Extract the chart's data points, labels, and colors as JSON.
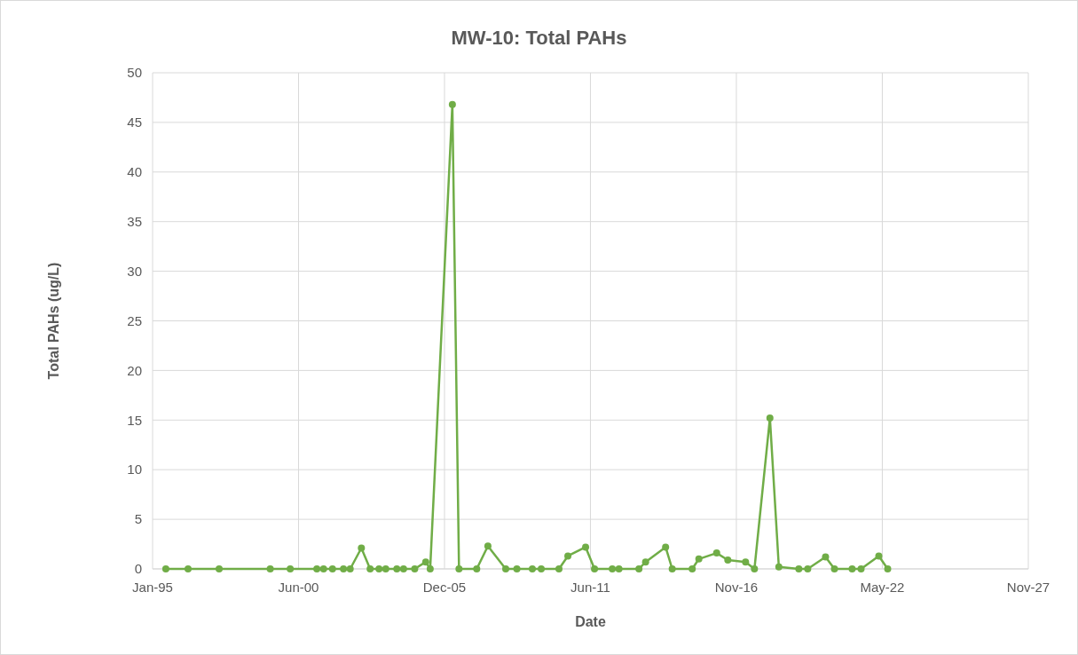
{
  "chart_data": {
    "type": "line",
    "title": "MW-10: Total PAHs",
    "xlabel": "Date",
    "ylabel": "Total PAHs (ug/L)",
    "x": [
      "1995-07",
      "1996-05",
      "1997-07",
      "1999-06",
      "2000-03",
      "2001-03",
      "2001-06",
      "2001-10",
      "2002-03",
      "2002-06",
      "2002-11",
      "2003-03",
      "2003-07",
      "2003-10",
      "2004-03",
      "2004-06",
      "2004-11",
      "2005-04",
      "2005-06",
      "2006-04",
      "2006-07",
      "2007-03",
      "2007-08",
      "2008-04",
      "2008-09",
      "2009-04",
      "2009-08",
      "2010-04",
      "2010-08",
      "2011-04",
      "2011-08",
      "2012-04",
      "2012-07",
      "2013-04",
      "2013-07",
      "2014-04",
      "2014-07",
      "2015-04",
      "2015-07",
      "2016-03",
      "2016-08",
      "2017-04",
      "2017-08",
      "2018-03",
      "2018-07",
      "2019-04",
      "2019-08",
      "2020-04",
      "2020-08",
      "2021-04",
      "2021-08",
      "2022-04",
      "2022-08"
    ],
    "series": [
      {
        "color": "#70ad47",
        "values": [
          0,
          0,
          0,
          0,
          0,
          0,
          0,
          0,
          0,
          0,
          2.1,
          0,
          0,
          0,
          0,
          0,
          0,
          0.7,
          0,
          46.8,
          0,
          0,
          2.3,
          0,
          0,
          0,
          0,
          0,
          1.3,
          2.2,
          0,
          0,
          0,
          0,
          0.7,
          2.2,
          0,
          0,
          1.0,
          1.6,
          0.9,
          0.7,
          0,
          15.2,
          0.2,
          0,
          0,
          1.2,
          0,
          0,
          0,
          1.3,
          0
        ]
      }
    ],
    "xlim": [
      "1995-01-01",
      "2027-11-10"
    ],
    "xticks": [
      {
        "value": "1995-01-01",
        "label": "Jan-95"
      },
      {
        "value": "2000-06-23",
        "label": "Jun-00"
      },
      {
        "value": "2005-12-14",
        "label": "Dec-05"
      },
      {
        "value": "2011-06-06",
        "label": "Jun-11"
      },
      {
        "value": "2016-11-26",
        "label": "Nov-16"
      },
      {
        "value": "2022-05-19",
        "label": "May-22"
      },
      {
        "value": "2027-11-10",
        "label": "Nov-27"
      }
    ],
    "ylim": [
      0,
      50
    ],
    "yticks": [
      0,
      5,
      10,
      15,
      20,
      25,
      30,
      35,
      40,
      45,
      50
    ],
    "grid": true,
    "marker": "circle",
    "line_style": "solid"
  }
}
